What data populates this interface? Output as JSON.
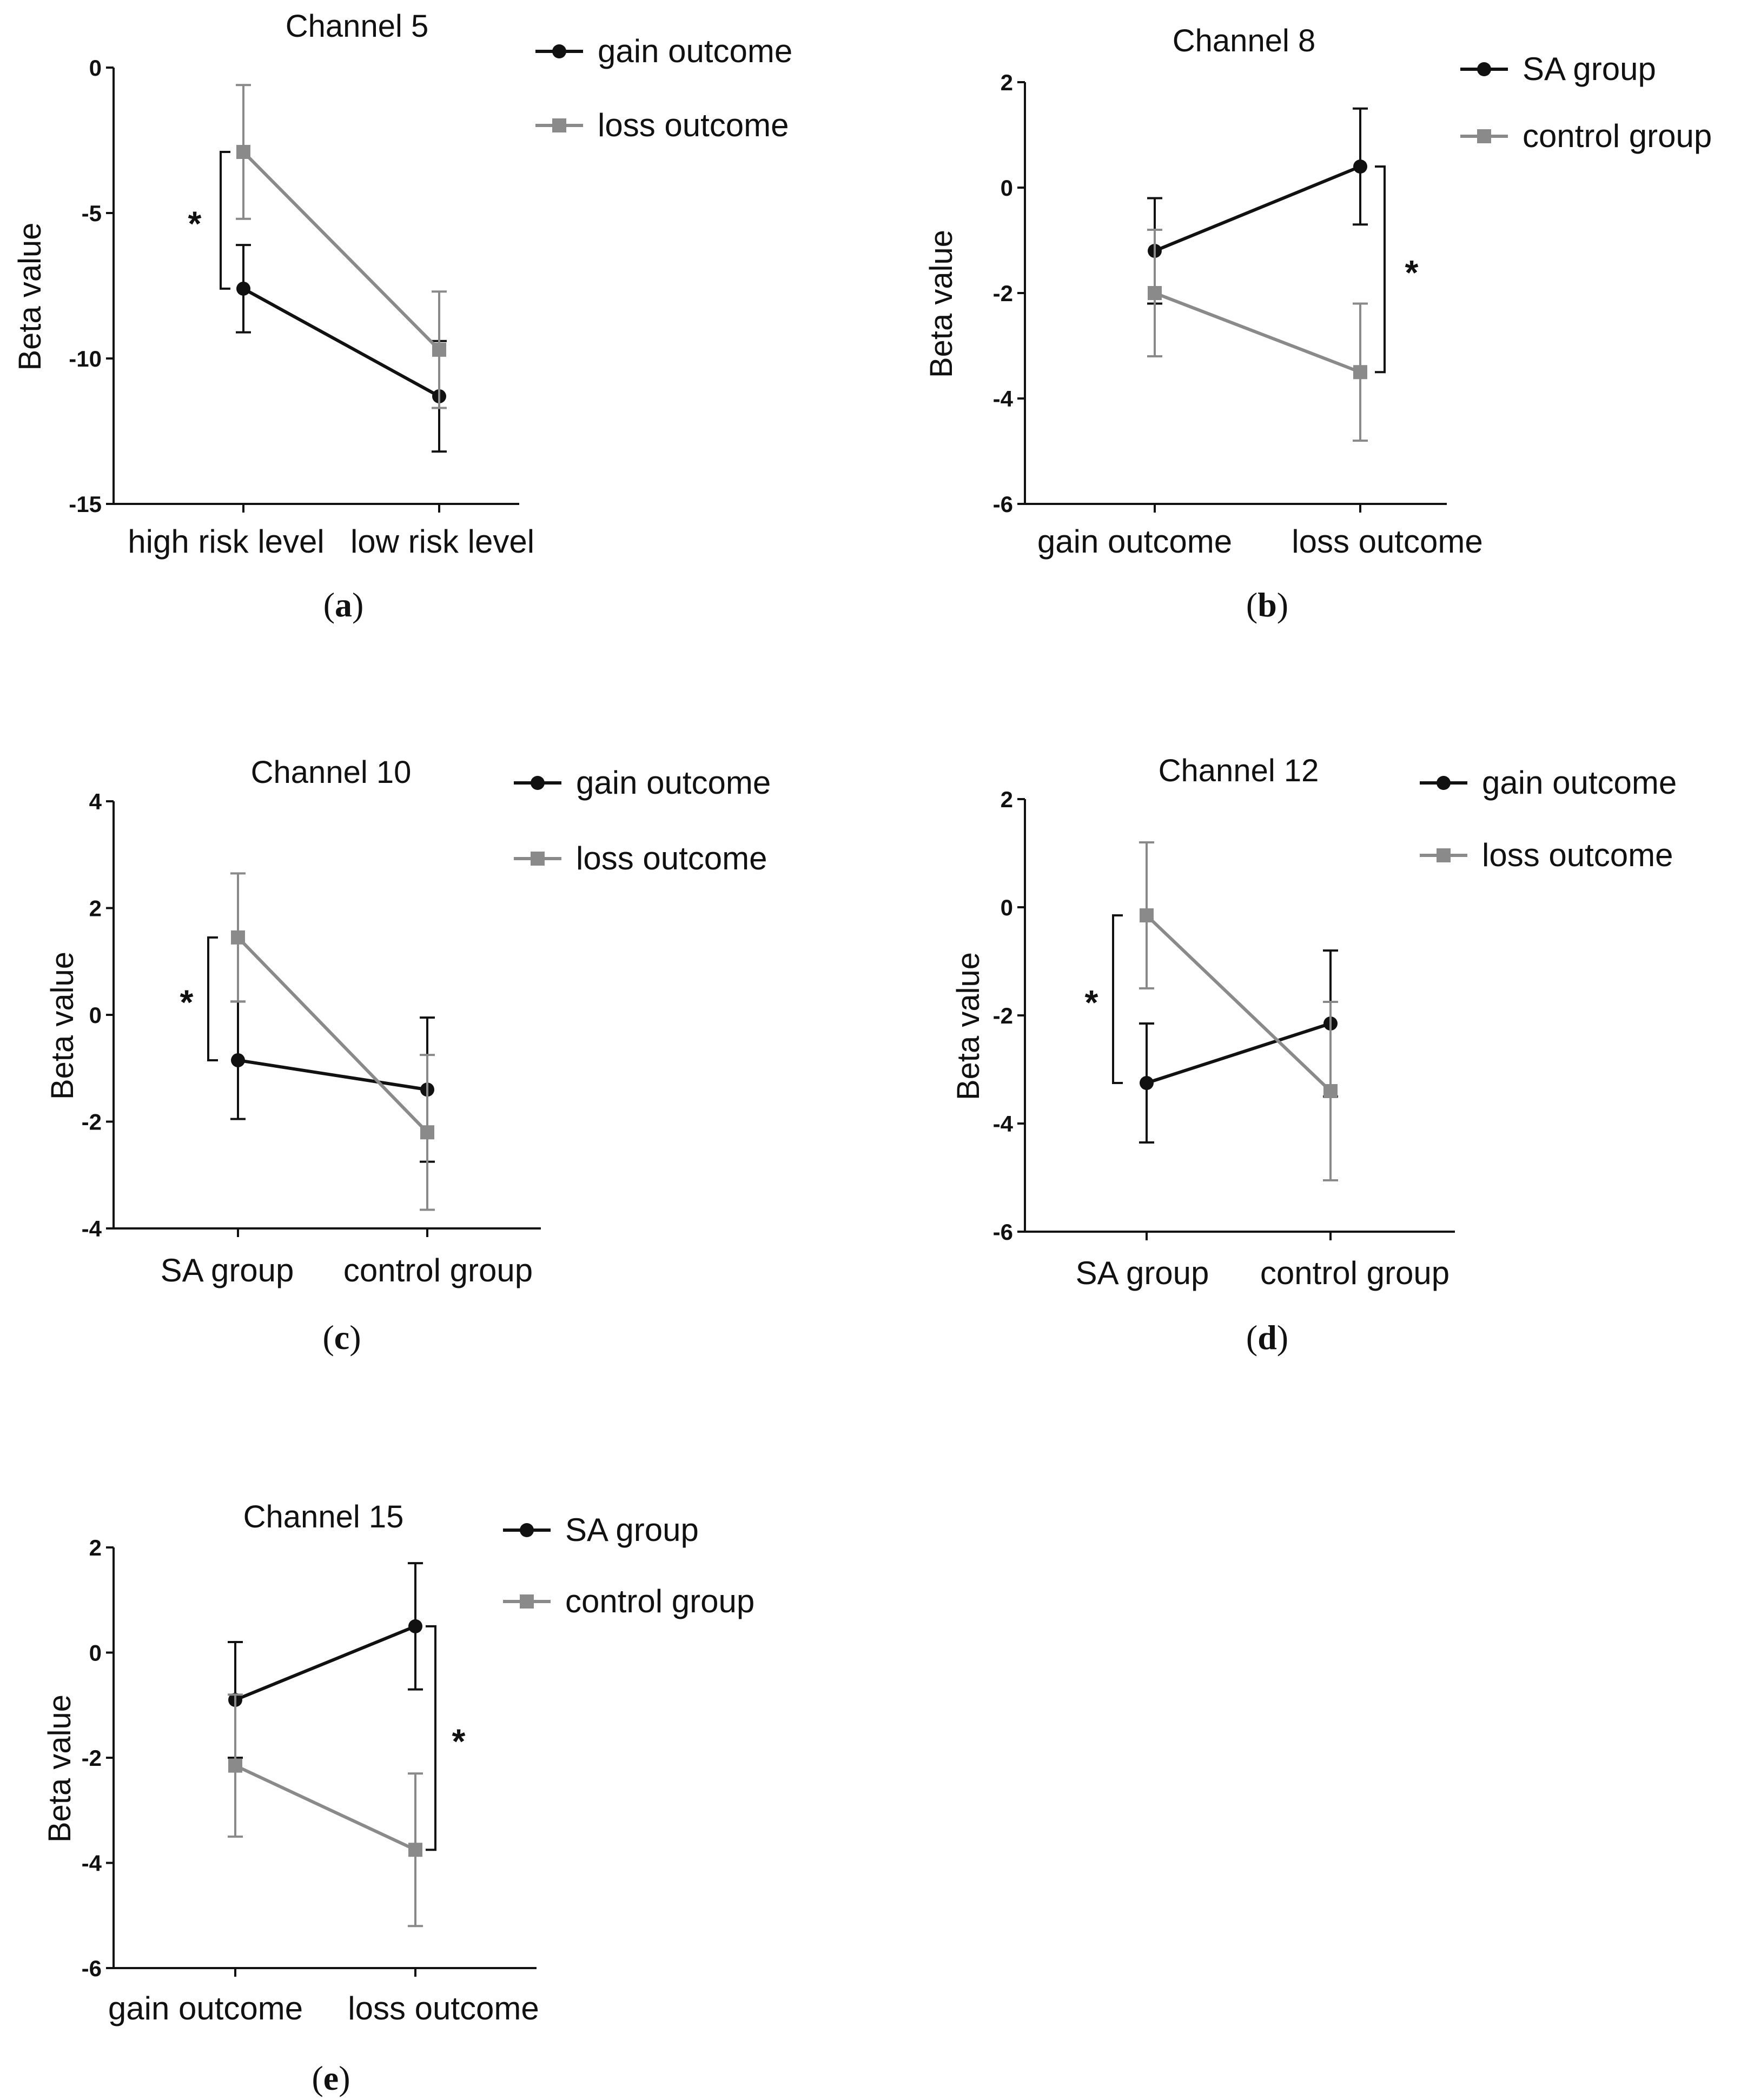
{
  "colors": {
    "black_series": "#111111",
    "gray_series": "#8a8a8a",
    "axis": "#111111"
  },
  "chart_data": [
    {
      "type": "line",
      "panel": "a",
      "title": "Channel 5",
      "xlabel": "",
      "ylabel": "Beta value",
      "categories": [
        "high risk level",
        "low risk  level"
      ],
      "ylim": [
        -15,
        0
      ],
      "yticks": [
        0,
        -5,
        -10,
        -15
      ],
      "legend": "top-right",
      "significance": {
        "category_index": 0,
        "label": "*"
      },
      "series": [
        {
          "name": "gain outcome",
          "marker": "circle",
          "color": "#111111",
          "values": [
            -7.6,
            -11.3
          ],
          "errors": [
            1.5,
            1.9
          ]
        },
        {
          "name": "loss outcome",
          "marker": "square",
          "color": "#8a8a8a",
          "values": [
            -2.9,
            -9.7
          ],
          "errors": [
            2.3,
            2.0
          ]
        }
      ]
    },
    {
      "type": "line",
      "panel": "b",
      "title": "Channel 8",
      "xlabel": "",
      "ylabel": "Beta value",
      "categories": [
        "gain outcome",
        "loss outcome"
      ],
      "ylim": [
        -6,
        2
      ],
      "yticks": [
        2,
        0,
        -2,
        -4,
        -6
      ],
      "legend": "top-right",
      "significance": {
        "category_index": 1,
        "label": "*"
      },
      "series": [
        {
          "name": "SA group",
          "marker": "circle",
          "color": "#111111",
          "values": [
            -1.2,
            0.4
          ],
          "errors": [
            1.0,
            1.1
          ]
        },
        {
          "name": "control group",
          "marker": "square",
          "color": "#8a8a8a",
          "values": [
            -2.0,
            -3.5
          ],
          "errors": [
            1.2,
            1.3
          ]
        }
      ]
    },
    {
      "type": "line",
      "panel": "c",
      "title": "Channel 10",
      "xlabel": "",
      "ylabel": "Beta value",
      "categories": [
        "SA group",
        "control group"
      ],
      "ylim": [
        -4,
        4
      ],
      "yticks": [
        4,
        2,
        0,
        -2,
        -4
      ],
      "legend": "top-right",
      "significance": {
        "category_index": 0,
        "label": "*"
      },
      "series": [
        {
          "name": "gain outcome",
          "marker": "circle",
          "color": "#111111",
          "values": [
            -0.85,
            -1.4
          ],
          "errors": [
            1.1,
            1.35
          ]
        },
        {
          "name": "loss outcome",
          "marker": "square",
          "color": "#8a8a8a",
          "values": [
            1.45,
            -2.2
          ],
          "errors": [
            1.2,
            1.45
          ]
        }
      ]
    },
    {
      "type": "line",
      "panel": "d",
      "title": "Channel 12",
      "xlabel": "",
      "ylabel": "Beta value",
      "categories": [
        "SA  group",
        "control  group"
      ],
      "ylim": [
        -6,
        2
      ],
      "yticks": [
        2,
        0,
        -2,
        -4,
        -6
      ],
      "legend": "top-right",
      "significance": {
        "category_index": 0,
        "label": "*"
      },
      "series": [
        {
          "name": "gain  outcome",
          "marker": "circle",
          "color": "#111111",
          "values": [
            -3.25,
            -2.15
          ],
          "errors": [
            1.1,
            1.35
          ]
        },
        {
          "name": "loss  outcome",
          "marker": "square",
          "color": "#8a8a8a",
          "values": [
            -0.15,
            -3.4
          ],
          "errors": [
            1.35,
            1.65
          ]
        }
      ]
    },
    {
      "type": "line",
      "panel": "e",
      "title": "Channel 15",
      "xlabel": "",
      "ylabel": "Beta value",
      "categories": [
        "gain outcome",
        "loss outcome"
      ],
      "ylim": [
        -6,
        2
      ],
      "yticks": [
        2,
        0,
        -2,
        -4,
        -6
      ],
      "legend": "top-right",
      "significance": {
        "category_index": 1,
        "label": "*"
      },
      "series": [
        {
          "name": "SA group",
          "marker": "circle",
          "color": "#111111",
          "values": [
            -0.9,
            0.5
          ],
          "errors": [
            1.1,
            1.2
          ]
        },
        {
          "name": "control group",
          "marker": "square",
          "color": "#8a8a8a",
          "values": [
            -2.15,
            -3.75
          ],
          "errors": [
            1.35,
            1.45
          ]
        }
      ]
    }
  ],
  "panel_labels": [
    "(a)",
    "(b)",
    "(c)",
    "(d)",
    "(e)"
  ],
  "panel_label_parts": [
    {
      "open": "(",
      "letter": "a",
      "close": ")"
    },
    {
      "open": "(",
      "letter": "b",
      "close": ")"
    },
    {
      "open": "(",
      "letter": "c",
      "close": ")"
    },
    {
      "open": "(",
      "letter": "d",
      "close": ")"
    },
    {
      "open": "(",
      "letter": "e",
      "close": ")"
    }
  ]
}
